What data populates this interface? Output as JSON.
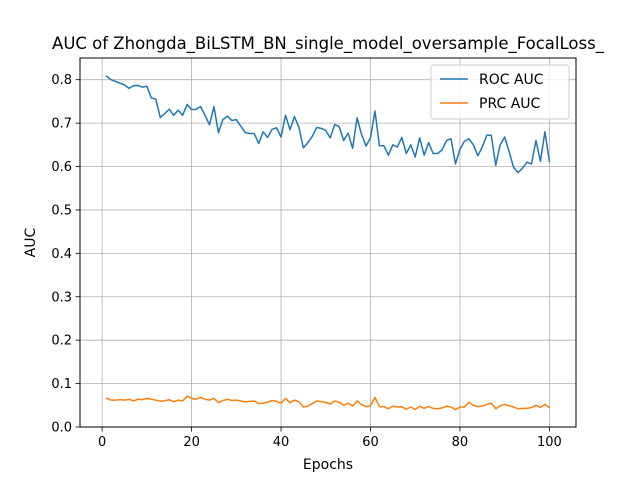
{
  "chart_data": {
    "type": "line",
    "title": "AUC of Zhongda_BiLSTM_BN_single_model_oversample_FocalLoss_",
    "xlabel": "Epochs",
    "ylabel": "AUC",
    "xlim": [
      -4.95,
      105.95
    ],
    "ylim": [
      0.0,
      0.85
    ],
    "xticks": [
      0,
      20,
      40,
      60,
      80,
      100
    ],
    "yticks": [
      0.0,
      0.1,
      0.2,
      0.3,
      0.4,
      0.5,
      0.6,
      0.7,
      0.8
    ],
    "xtick_labels": [
      "0",
      "20",
      "40",
      "60",
      "80",
      "100"
    ],
    "ytick_labels": [
      "0.0",
      "0.1",
      "0.2",
      "0.3",
      "0.4",
      "0.5",
      "0.6",
      "0.7",
      "0.8"
    ],
    "grid": true,
    "legend_position": "top-right",
    "series": [
      {
        "name": "ROC AUC",
        "color": "#1f77b4",
        "x": [
          1,
          2,
          3,
          4,
          5,
          6,
          7,
          8,
          9,
          10,
          11,
          12,
          13,
          14,
          15,
          16,
          17,
          18,
          19,
          20,
          21,
          22,
          23,
          24,
          25,
          26,
          27,
          28,
          29,
          30,
          31,
          32,
          33,
          34,
          35,
          36,
          37,
          38,
          39,
          40,
          41,
          42,
          43,
          44,
          45,
          46,
          47,
          48,
          49,
          50,
          51,
          52,
          53,
          54,
          55,
          56,
          57,
          58,
          59,
          60,
          61,
          62,
          63,
          64,
          65,
          66,
          67,
          68,
          69,
          70,
          71,
          72,
          73,
          74,
          75,
          76,
          77,
          78,
          79,
          80,
          81,
          82,
          83,
          84,
          85,
          86,
          87,
          88,
          89,
          90,
          91,
          92,
          93,
          94,
          95,
          96,
          97,
          98,
          99,
          100
        ],
        "values": [
          0.808,
          0.8,
          0.796,
          0.792,
          0.788,
          0.78,
          0.786,
          0.787,
          0.783,
          0.785,
          0.758,
          0.755,
          0.713,
          0.722,
          0.732,
          0.718,
          0.73,
          0.718,
          0.743,
          0.731,
          0.732,
          0.738,
          0.718,
          0.696,
          0.738,
          0.678,
          0.708,
          0.716,
          0.706,
          0.708,
          0.693,
          0.678,
          0.676,
          0.676,
          0.653,
          0.68,
          0.667,
          0.686,
          0.689,
          0.668,
          0.718,
          0.685,
          0.715,
          0.69,
          0.643,
          0.655,
          0.67,
          0.69,
          0.688,
          0.683,
          0.666,
          0.697,
          0.692,
          0.66,
          0.677,
          0.642,
          0.712,
          0.674,
          0.647,
          0.666,
          0.728,
          0.648,
          0.648,
          0.626,
          0.65,
          0.645,
          0.667,
          0.63,
          0.65,
          0.622,
          0.666,
          0.626,
          0.655,
          0.63,
          0.63,
          0.638,
          0.66,
          0.664,
          0.606,
          0.64,
          0.658,
          0.664,
          0.65,
          0.625,
          0.645,
          0.672,
          0.672,
          0.603,
          0.65,
          0.668,
          0.634,
          0.598,
          0.586,
          0.596,
          0.61,
          0.606,
          0.66,
          0.612,
          0.68,
          0.612
        ]
      },
      {
        "name": "PRC AUC",
        "color": "#ff7f0e",
        "x": [
          1,
          2,
          3,
          4,
          5,
          6,
          7,
          8,
          9,
          10,
          11,
          12,
          13,
          14,
          15,
          16,
          17,
          18,
          19,
          20,
          21,
          22,
          23,
          24,
          25,
          26,
          27,
          28,
          29,
          30,
          31,
          32,
          33,
          34,
          35,
          36,
          37,
          38,
          39,
          40,
          41,
          42,
          43,
          44,
          45,
          46,
          47,
          48,
          49,
          50,
          51,
          52,
          53,
          54,
          55,
          56,
          57,
          58,
          59,
          60,
          61,
          62,
          63,
          64,
          65,
          66,
          67,
          68,
          69,
          70,
          71,
          72,
          73,
          74,
          75,
          76,
          77,
          78,
          79,
          80,
          81,
          82,
          83,
          84,
          85,
          86,
          87,
          88,
          89,
          90,
          91,
          92,
          93,
          94,
          95,
          96,
          97,
          98,
          99,
          100
        ],
        "values": [
          0.066,
          0.062,
          0.062,
          0.063,
          0.062,
          0.064,
          0.06,
          0.064,
          0.063,
          0.066,
          0.064,
          0.062,
          0.06,
          0.06,
          0.063,
          0.058,
          0.062,
          0.06,
          0.071,
          0.066,
          0.064,
          0.068,
          0.064,
          0.062,
          0.066,
          0.056,
          0.061,
          0.064,
          0.061,
          0.062,
          0.06,
          0.058,
          0.059,
          0.06,
          0.054,
          0.055,
          0.057,
          0.061,
          0.059,
          0.055,
          0.066,
          0.056,
          0.062,
          0.058,
          0.046,
          0.048,
          0.054,
          0.06,
          0.058,
          0.057,
          0.053,
          0.06,
          0.057,
          0.05,
          0.055,
          0.048,
          0.06,
          0.052,
          0.047,
          0.049,
          0.068,
          0.047,
          0.047,
          0.042,
          0.048,
          0.046,
          0.047,
          0.041,
          0.046,
          0.04,
          0.048,
          0.043,
          0.047,
          0.043,
          0.042,
          0.044,
          0.048,
          0.046,
          0.04,
          0.046,
          0.046,
          0.057,
          0.05,
          0.047,
          0.048,
          0.052,
          0.055,
          0.042,
          0.049,
          0.052,
          0.049,
          0.046,
          0.042,
          0.043,
          0.043,
          0.045,
          0.05,
          0.045,
          0.052,
          0.045
        ]
      }
    ]
  }
}
